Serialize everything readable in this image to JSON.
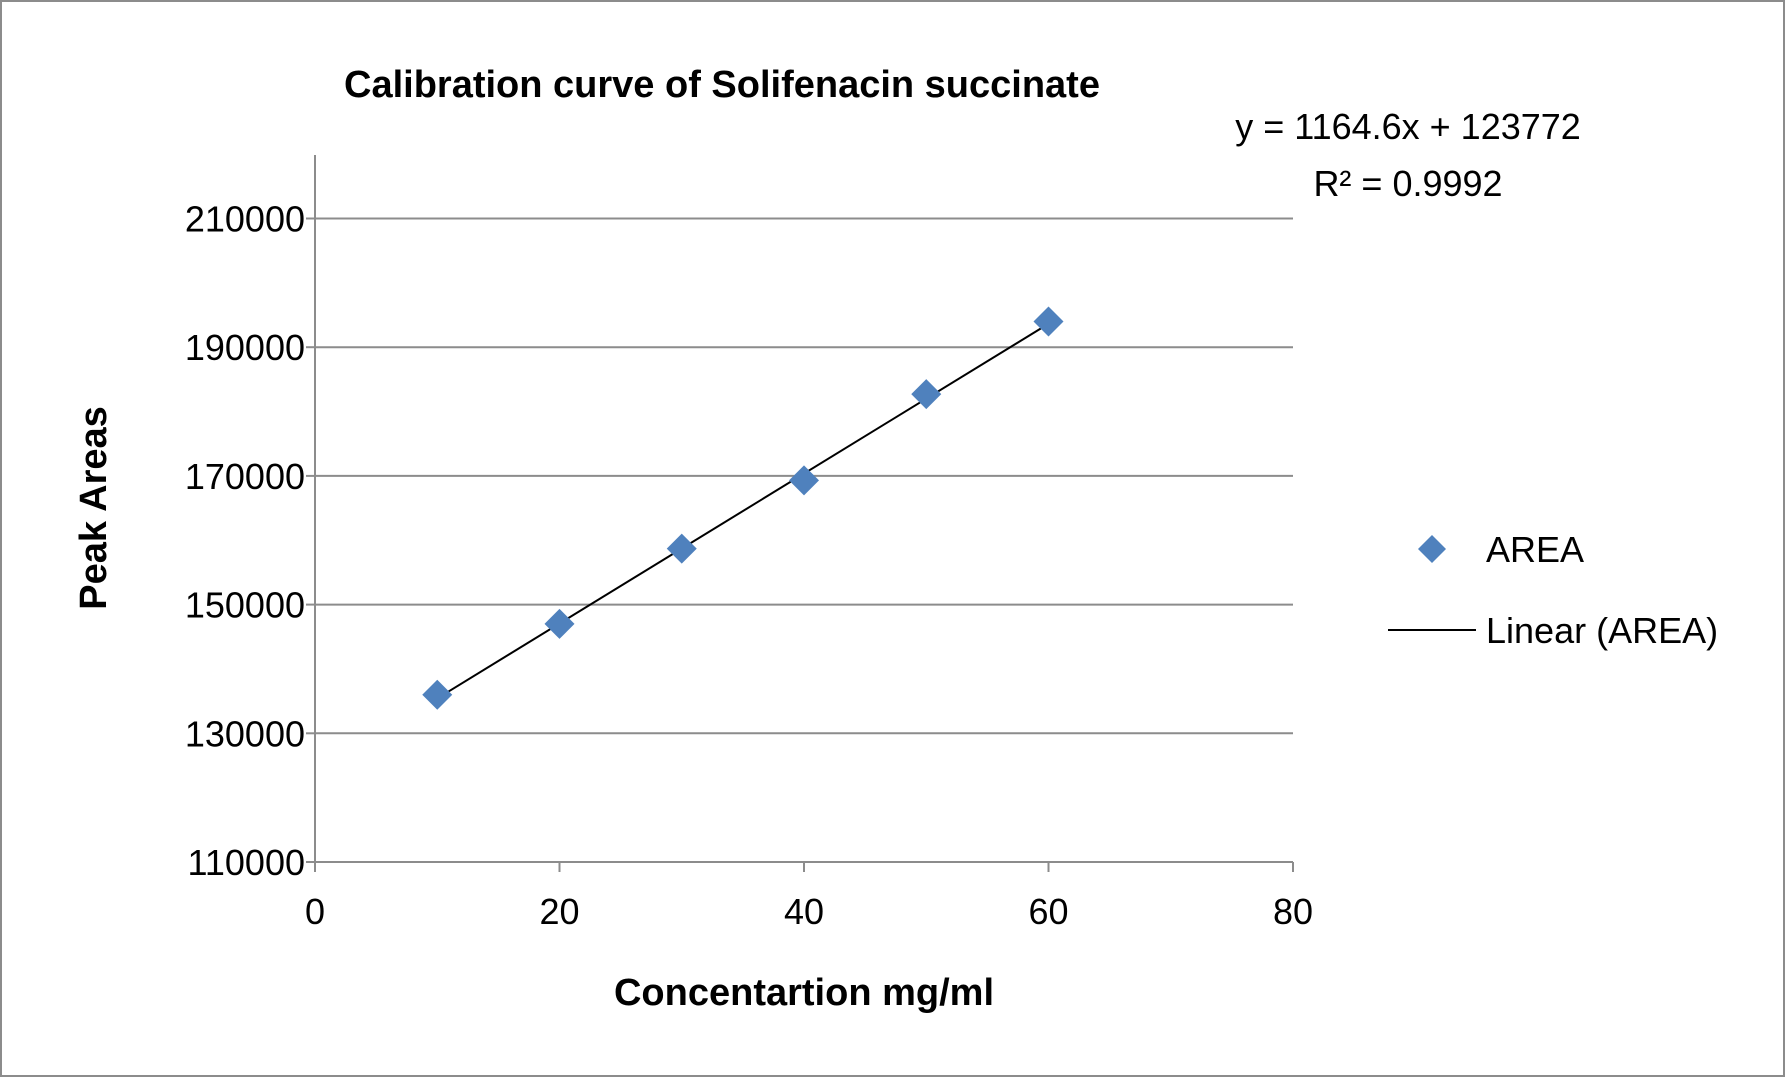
{
  "chart_data": {
    "type": "scatter",
    "title": "Calibration curve of Solifenacin succinate",
    "xlabel": "Concentartion mg/ml",
    "ylabel": "Peak Areas",
    "xlim": [
      0,
      80
    ],
    "ylim": [
      110000,
      220000
    ],
    "x_ticks": [
      0,
      20,
      40,
      60,
      80
    ],
    "y_ticks": [
      110000,
      130000,
      150000,
      170000,
      190000,
      210000
    ],
    "x_tick_labels": [
      "0",
      "20",
      "40",
      "60",
      "80"
    ],
    "y_tick_labels": [
      "110000",
      "130000",
      "150000",
      "170000",
      "190000",
      "210000"
    ],
    "grid": "horizontal",
    "legend_position": "right",
    "series": [
      {
        "name": "AREA",
        "marker": "diamond",
        "color": "#4f81bd",
        "x": [
          10,
          20,
          30,
          40,
          50,
          60
        ],
        "y": [
          136000,
          147000,
          158700,
          169300,
          182700,
          194000
        ]
      }
    ],
    "trendline": {
      "name": "Linear (AREA)",
      "type": "linear",
      "slope": 1164.6,
      "intercept": 123772,
      "x_range": [
        10,
        60
      ],
      "color": "#000000",
      "equation": "y = 1164.6x + 123772",
      "r2_label": "R² = 0.9992"
    }
  }
}
